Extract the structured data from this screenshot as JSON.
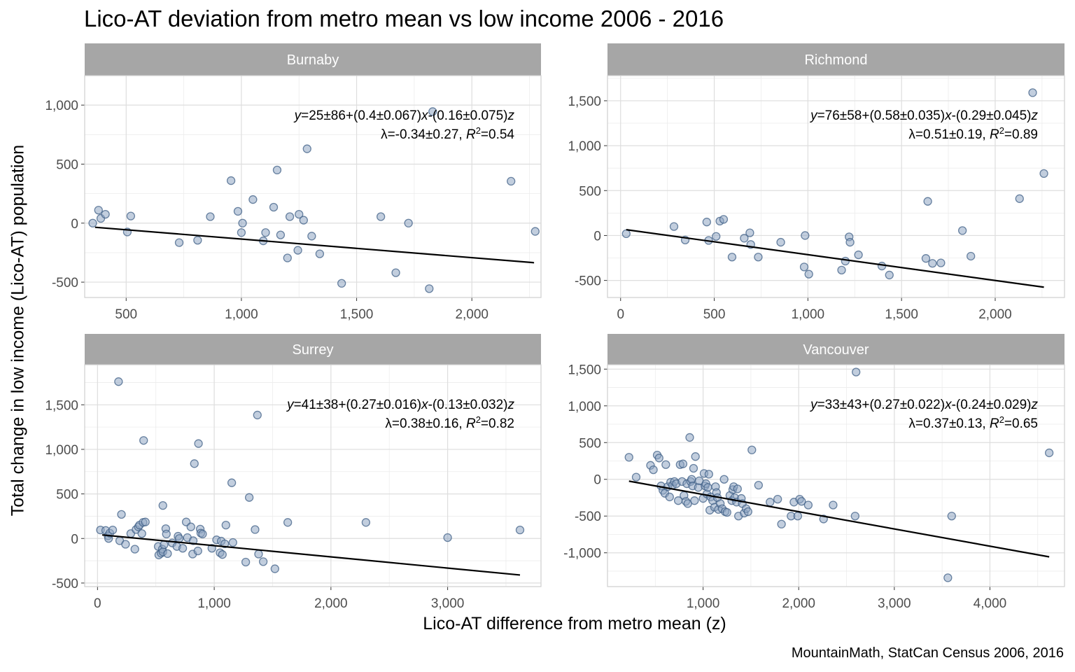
{
  "title": "Lico-AT deviation from metro mean vs low income 2006 - 2016",
  "caption": "MountainMath, StatCan Census 2006, 2016",
  "chart_data": {
    "type": "scatter",
    "xlabel": "Lico-AT difference from metro mean (z)",
    "ylabel": "Total change in low income (Lico-AT) population",
    "colors": {
      "points_fill": "#8fa6c2",
      "points_stroke": "#3f5f86",
      "line": "#000000",
      "strip": "#a6a6a6",
      "grid": "#dedede"
    },
    "panels": [
      {
        "name": "Burnaby",
        "xlim": [
          320,
          2300
        ],
        "ylim": [
          -630,
          1250
        ],
        "xticks": [
          500,
          1000,
          1500,
          2000
        ],
        "yticks": [
          -500,
          0,
          500,
          1000
        ],
        "xtick_labels": [
          "500",
          "1,000",
          "1,500",
          "2,000"
        ],
        "ytick_labels": [
          "-500",
          "0",
          "500",
          "1,000"
        ],
        "annotation_line1": "y=25±86+(0.4±0.067)x-(0.16±0.075)z",
        "annotation_line2": "λ=-0.34±0.27, R2=0.54",
        "fit": {
          "x": [
            365,
            2270
          ],
          "y": [
            -35,
            -335
          ]
        },
        "points": [
          [
            355,
            0
          ],
          [
            380,
            110
          ],
          [
            390,
            40
          ],
          [
            410,
            75
          ],
          [
            505,
            -75
          ],
          [
            520,
            60
          ],
          [
            730,
            -165
          ],
          [
            810,
            -145
          ],
          [
            865,
            55
          ],
          [
            955,
            360
          ],
          [
            985,
            100
          ],
          [
            1000,
            -80
          ],
          [
            1005,
            0
          ],
          [
            1050,
            200
          ],
          [
            1095,
            -150
          ],
          [
            1105,
            -80
          ],
          [
            1140,
            135
          ],
          [
            1155,
            450
          ],
          [
            1170,
            -100
          ],
          [
            1200,
            -295
          ],
          [
            1210,
            55
          ],
          [
            1245,
            -230
          ],
          [
            1250,
            75
          ],
          [
            1270,
            25
          ],
          [
            1285,
            630
          ],
          [
            1305,
            -110
          ],
          [
            1340,
            -260
          ],
          [
            1435,
            -510
          ],
          [
            1605,
            55
          ],
          [
            1670,
            -420
          ],
          [
            1725,
            0
          ],
          [
            1815,
            -555
          ],
          [
            1830,
            945
          ],
          [
            2170,
            355
          ],
          [
            2275,
            -70
          ]
        ]
      },
      {
        "name": "Richmond",
        "xlim": [
          -70,
          2370
        ],
        "ylim": [
          -690,
          1780
        ],
        "xticks": [
          0,
          500,
          1000,
          1500,
          2000
        ],
        "yticks": [
          -500,
          0,
          500,
          1000,
          1500
        ],
        "xtick_labels": [
          "0",
          "500",
          "1,000",
          "1,500",
          "2,000"
        ],
        "ytick_labels": [
          "-500",
          "0",
          "500",
          "1,000",
          "1,500"
        ],
        "annotation_line1": "y=76±58+(0.58±0.035)x-(0.29±0.045)z",
        "annotation_line2": "λ=0.51±0.19, R2=0.89",
        "fit": {
          "x": [
            30,
            2260
          ],
          "y": [
            65,
            -575
          ]
        },
        "points": [
          [
            30,
            20
          ],
          [
            285,
            100
          ],
          [
            345,
            -50
          ],
          [
            460,
            150
          ],
          [
            470,
            -55
          ],
          [
            510,
            -10
          ],
          [
            530,
            160
          ],
          [
            550,
            180
          ],
          [
            595,
            -240
          ],
          [
            660,
            -30
          ],
          [
            690,
            30
          ],
          [
            695,
            -100
          ],
          [
            735,
            -240
          ],
          [
            855,
            -75
          ],
          [
            980,
            -350
          ],
          [
            985,
            0
          ],
          [
            1005,
            -430
          ],
          [
            1180,
            -385
          ],
          [
            1200,
            -285
          ],
          [
            1220,
            -15
          ],
          [
            1225,
            -75
          ],
          [
            1270,
            -215
          ],
          [
            1395,
            -340
          ],
          [
            1435,
            -440
          ],
          [
            1630,
            -255
          ],
          [
            1640,
            380
          ],
          [
            1665,
            -310
          ],
          [
            1710,
            -305
          ],
          [
            1825,
            55
          ],
          [
            1870,
            -230
          ],
          [
            2130,
            410
          ],
          [
            2200,
            1590
          ],
          [
            2260,
            690
          ]
        ]
      },
      {
        "name": "Surrey",
        "xlim": [
          -110,
          3800
        ],
        "ylim": [
          -540,
          1950
        ],
        "xticks": [
          0,
          1000,
          2000,
          3000
        ],
        "yticks": [
          -500,
          0,
          500,
          1000,
          1500
        ],
        "xtick_labels": [
          "0",
          "1,000",
          "2,000",
          "3,000"
        ],
        "ytick_labels": [
          "-500",
          "0",
          "500",
          "1,000",
          "1,500"
        ],
        "annotation_line1": "y=41±38+(0.27±0.016)x-(0.13±0.032)z",
        "annotation_line2": "λ=0.38±0.16, R2=0.82",
        "fit": {
          "x": [
            40,
            3620
          ],
          "y": [
            40,
            -410
          ]
        },
        "points": [
          [
            25,
            95
          ],
          [
            70,
            90
          ],
          [
            90,
            30
          ],
          [
            95,
            0
          ],
          [
            105,
            60
          ],
          [
            130,
            95
          ],
          [
            180,
            1760
          ],
          [
            190,
            -25
          ],
          [
            205,
            270
          ],
          [
            240,
            -65
          ],
          [
            285,
            55
          ],
          [
            320,
            -120
          ],
          [
            330,
            100
          ],
          [
            350,
            130
          ],
          [
            360,
            150
          ],
          [
            380,
            55
          ],
          [
            390,
            180
          ],
          [
            395,
            1100
          ],
          [
            410,
            185
          ],
          [
            520,
            -90
          ],
          [
            525,
            -185
          ],
          [
            545,
            -165
          ],
          [
            555,
            -120
          ],
          [
            560,
            -150
          ],
          [
            560,
            370
          ],
          [
            570,
            -70
          ],
          [
            585,
            110
          ],
          [
            590,
            50
          ],
          [
            600,
            -170
          ],
          [
            640,
            -50
          ],
          [
            680,
            -90
          ],
          [
            690,
            25
          ],
          [
            700,
            0
          ],
          [
            730,
            -110
          ],
          [
            760,
            185
          ],
          [
            770,
            10
          ],
          [
            800,
            130
          ],
          [
            815,
            -175
          ],
          [
            820,
            -25
          ],
          [
            830,
            840
          ],
          [
            865,
            1065
          ],
          [
            860,
            -140
          ],
          [
            880,
            105
          ],
          [
            885,
            60
          ],
          [
            900,
            50
          ],
          [
            980,
            -110
          ],
          [
            1020,
            -15
          ],
          [
            1050,
            -160
          ],
          [
            1060,
            -30
          ],
          [
            1070,
            -180
          ],
          [
            1090,
            -60
          ],
          [
            1100,
            150
          ],
          [
            1150,
            625
          ],
          [
            1160,
            -45
          ],
          [
            1270,
            -265
          ],
          [
            1300,
            460
          ],
          [
            1350,
            100
          ],
          [
            1370,
            1385
          ],
          [
            1380,
            -175
          ],
          [
            1420,
            -260
          ],
          [
            1520,
            -340
          ],
          [
            1630,
            180
          ],
          [
            2300,
            180
          ],
          [
            3000,
            10
          ],
          [
            3620,
            95
          ]
        ]
      },
      {
        "name": "Vancouver",
        "xlim": [
          0,
          4780
        ],
        "ylim": [
          -1460,
          1560
        ],
        "xticks": [
          1000,
          2000,
          3000,
          4000
        ],
        "yticks": [
          -1000,
          -500,
          0,
          500,
          1000,
          1500
        ],
        "xtick_labels": [
          "1,000",
          "2,000",
          "3,000",
          "4,000"
        ],
        "ytick_labels": [
          "-1,000",
          "-500",
          "0",
          "500",
          "1,000",
          "1,500"
        ],
        "annotation_line1": "y=33±43+(0.27±0.022)x-(0.24±0.029)z",
        "annotation_line2": "λ=0.37±0.13, R2=0.65",
        "fit": {
          "x": [
            225,
            4620
          ],
          "y": [
            -25,
            -1055
          ]
        },
        "points": [
          [
            225,
            300
          ],
          [
            300,
            30
          ],
          [
            450,
            190
          ],
          [
            480,
            130
          ],
          [
            520,
            330
          ],
          [
            540,
            290
          ],
          [
            560,
            -90
          ],
          [
            580,
            -150
          ],
          [
            600,
            -190
          ],
          [
            610,
            200
          ],
          [
            630,
            -100
          ],
          [
            650,
            -240
          ],
          [
            660,
            -40
          ],
          [
            680,
            -80
          ],
          [
            700,
            -30
          ],
          [
            720,
            -60
          ],
          [
            740,
            -290
          ],
          [
            760,
            200
          ],
          [
            780,
            -30
          ],
          [
            790,
            210
          ],
          [
            800,
            -220
          ],
          [
            820,
            -300
          ],
          [
            830,
            -60
          ],
          [
            840,
            -330
          ],
          [
            860,
            570
          ],
          [
            870,
            -30
          ],
          [
            880,
            0
          ],
          [
            890,
            -90
          ],
          [
            900,
            150
          ],
          [
            910,
            -290
          ],
          [
            920,
            310
          ],
          [
            950,
            -110
          ],
          [
            960,
            -20
          ],
          [
            1000,
            -260
          ],
          [
            1010,
            80
          ],
          [
            1020,
            -90
          ],
          [
            1030,
            -60
          ],
          [
            1040,
            -200
          ],
          [
            1050,
            -110
          ],
          [
            1060,
            70
          ],
          [
            1070,
            -420
          ],
          [
            1080,
            -240
          ],
          [
            1100,
            -290
          ],
          [
            1120,
            -380
          ],
          [
            1130,
            -100
          ],
          [
            1140,
            -180
          ],
          [
            1150,
            -250
          ],
          [
            1160,
            -410
          ],
          [
            1180,
            -330
          ],
          [
            1200,
            -400
          ],
          [
            1220,
            0
          ],
          [
            1230,
            -440
          ],
          [
            1250,
            -450
          ],
          [
            1280,
            -220
          ],
          [
            1300,
            -290
          ],
          [
            1310,
            -140
          ],
          [
            1320,
            -100
          ],
          [
            1330,
            -250
          ],
          [
            1350,
            -310
          ],
          [
            1360,
            -130
          ],
          [
            1370,
            -500
          ],
          [
            1400,
            -260
          ],
          [
            1410,
            -330
          ],
          [
            1430,
            -460
          ],
          [
            1450,
            -400
          ],
          [
            1470,
            -440
          ],
          [
            1510,
            400
          ],
          [
            1580,
            -80
          ],
          [
            1700,
            -310
          ],
          [
            1780,
            -270
          ],
          [
            1820,
            -610
          ],
          [
            1920,
            -500
          ],
          [
            1950,
            -310
          ],
          [
            1990,
            -500
          ],
          [
            2010,
            -270
          ],
          [
            2030,
            -300
          ],
          [
            2100,
            -350
          ],
          [
            2260,
            -540
          ],
          [
            2360,
            -350
          ],
          [
            2590,
            -500
          ],
          [
            2600,
            1460
          ],
          [
            3560,
            -1340
          ],
          [
            3600,
            -500
          ],
          [
            4620,
            360
          ]
        ]
      }
    ]
  }
}
